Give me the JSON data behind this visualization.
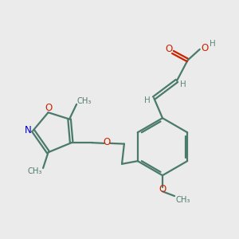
{
  "bg_color": "#ebebeb",
  "bond_color": "#4a7a6a",
  "oxygen_color": "#cc2200",
  "nitrogen_color": "#0000cc",
  "hydrogen_color": "#5a8a7a",
  "line_width": 1.6,
  "figsize": [
    3.0,
    3.0
  ],
  "dpi": 100,
  "atoms": {
    "N": {
      "label": "N",
      "color": "#0000cc"
    },
    "O": {
      "label": "O",
      "color": "#cc2200"
    },
    "H": {
      "label": "H",
      "color": "#5a8a7a"
    }
  }
}
